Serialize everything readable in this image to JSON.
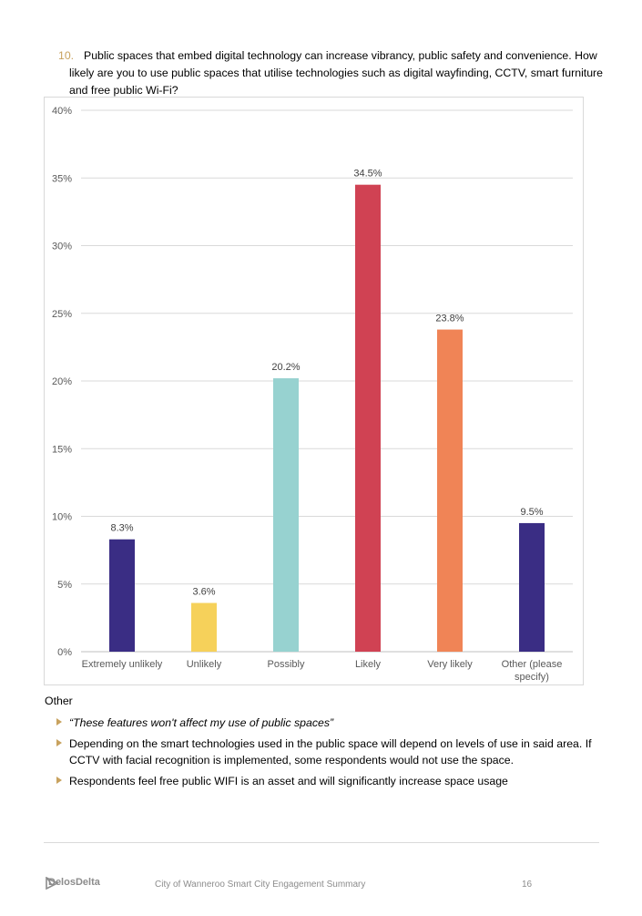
{
  "question": {
    "number": "10.",
    "text": "Public spaces that embed digital technology can increase vibrancy, public safety and convenience.  How likely are you to use public spaces that utilise technologies such as digital wayfinding, CCTV, smart furniture and free public Wi-Fi?"
  },
  "chart_data": {
    "type": "bar",
    "categories": [
      "Extremely unlikely",
      "Unlikely",
      "Possibly",
      "Likely",
      "Very likely",
      "Other (please specify)"
    ],
    "category_lines": [
      [
        "Extremely unlikely"
      ],
      [
        "Unlikely"
      ],
      [
        "Possibly"
      ],
      [
        "Likely"
      ],
      [
        "Very likely"
      ],
      [
        "Other (please",
        "specify)"
      ]
    ],
    "values": [
      8.3,
      3.6,
      20.2,
      34.5,
      23.8,
      9.5
    ],
    "data_labels": [
      "8.3%",
      "3.6%",
      "20.2%",
      "34.5%",
      "23.8%",
      "9.5%"
    ],
    "colors": [
      "#3a2d84",
      "#f6d15a",
      "#97d2d0",
      "#d04253",
      "#f08456",
      "#3a2d84"
    ],
    "ylim": [
      0,
      40
    ],
    "yticks": [
      "0%",
      "5%",
      "10%",
      "15%",
      "20%",
      "25%",
      "30%",
      "35%",
      "40%"
    ],
    "grid": true
  },
  "other": {
    "heading": "Other",
    "items": [
      "“These features won't affect my use of public spaces”",
      "Depending on the smart technologies used in the public space will depend on levels of use in said area. If CCTV with facial recognition is implemented, some respondents would not use the space.",
      "Respondents feel free public WIFI is an asset and will significantly increase space usage"
    ]
  },
  "footer": {
    "logo_text": "DelosDelta",
    "title": "City of Wanneroo Smart City Engagement Summary",
    "page": "16"
  }
}
